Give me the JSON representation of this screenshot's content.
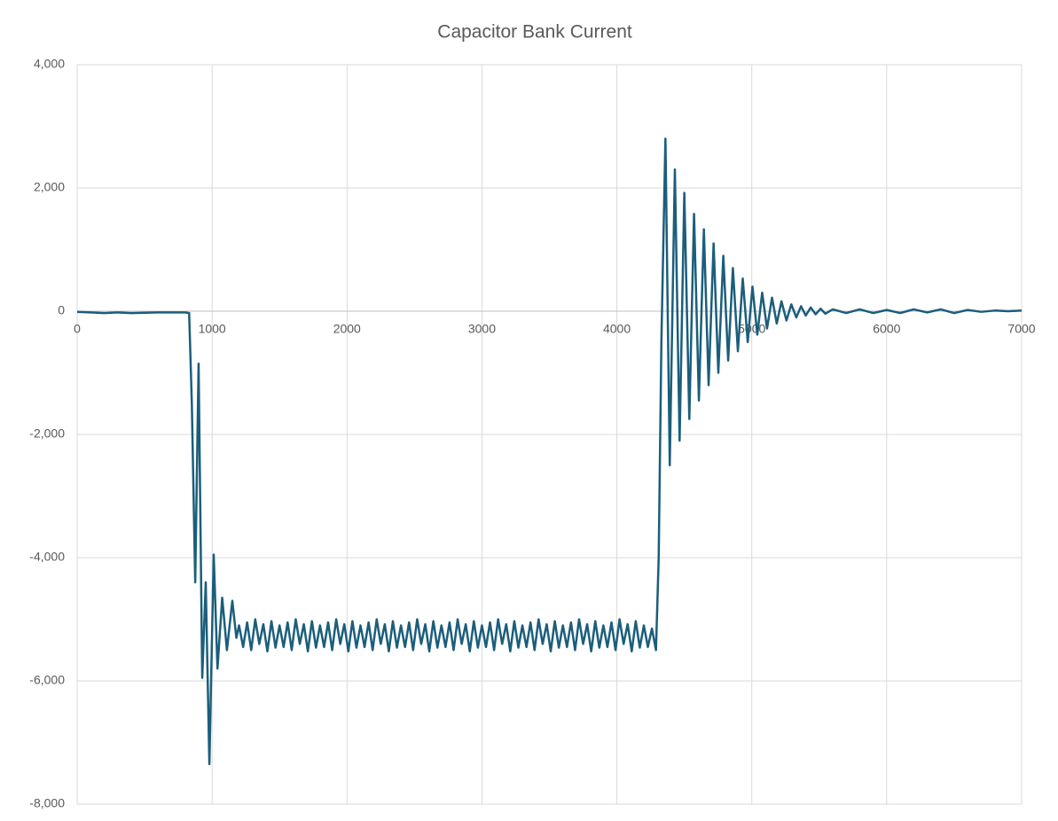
{
  "chart_data": {
    "type": "line",
    "title": "Capacitor Bank Current",
    "xlim": [
      0,
      7000
    ],
    "xticks": [
      0,
      1000,
      2000,
      3000,
      4000,
      5000,
      6000,
      7000
    ],
    "ylim": [
      -8000,
      4000
    ],
    "yticks": [
      {
        "value": -8000,
        "label": "-8,000"
      },
      {
        "value": -6000,
        "label": "-6,000"
      },
      {
        "value": -4000,
        "label": "-4,000"
      },
      {
        "value": -2000,
        "label": "-2,000"
      },
      0,
      {
        "value": 2000,
        "label": "2,000"
      },
      {
        "value": 4000,
        "label": "4,000"
      }
    ],
    "grid": true,
    "series": [
      {
        "color": "#1b5e7b",
        "x": [
          0,
          100,
          200,
          300,
          400,
          500,
          600,
          700,
          800,
          830,
          850,
          875,
          900,
          927,
          953,
          980,
          1012,
          1040,
          1075,
          1110,
          1150,
          1180,
          1200,
          1230,
          1260,
          1290,
          1320,
          1350,
          1380,
          1410,
          1440,
          1470,
          1500,
          1530,
          1560,
          1590,
          1620,
          1650,
          1680,
          1710,
          1740,
          1770,
          1800,
          1830,
          1860,
          1890,
          1920,
          1950,
          1980,
          2010,
          2040,
          2070,
          2100,
          2130,
          2160,
          2190,
          2220,
          2250,
          2280,
          2310,
          2340,
          2370,
          2400,
          2430,
          2460,
          2490,
          2520,
          2550,
          2580,
          2610,
          2640,
          2670,
          2700,
          2730,
          2760,
          2790,
          2820,
          2850,
          2880,
          2910,
          2940,
          2970,
          3000,
          3030,
          3060,
          3090,
          3120,
          3150,
          3180,
          3210,
          3240,
          3270,
          3300,
          3330,
          3360,
          3390,
          3420,
          3450,
          3480,
          3510,
          3540,
          3570,
          3600,
          3630,
          3660,
          3690,
          3720,
          3750,
          3780,
          3810,
          3840,
          3870,
          3900,
          3930,
          3960,
          3990,
          4020,
          4050,
          4080,
          4110,
          4140,
          4170,
          4200,
          4230,
          4260,
          4290,
          4310,
          4330,
          4360,
          4392,
          4430,
          4465,
          4500,
          4537,
          4572,
          4608,
          4645,
          4680,
          4717,
          4752,
          4789,
          4825,
          4860,
          4897,
          4933,
          4970,
          5005,
          5041,
          5077,
          5113,
          5150,
          5185,
          5220,
          5257,
          5293,
          5330,
          5365,
          5400,
          5437,
          5473,
          5510,
          5545,
          5600,
          5700,
          5800,
          5900,
          6000,
          6100,
          6200,
          6300,
          6400,
          6500,
          6600,
          6700,
          6800,
          6900,
          7000
        ],
        "values": [
          -10,
          -20,
          -30,
          -20,
          -30,
          -25,
          -20,
          -20,
          -20,
          -30,
          -1500,
          -4400,
          -850,
          -5950,
          -4400,
          -7350,
          -3950,
          -5800,
          -4650,
          -5500,
          -4700,
          -5300,
          -5100,
          -5450,
          -5050,
          -5500,
          -5000,
          -5400,
          -5080,
          -5520,
          -5030,
          -5460,
          -5100,
          -5450,
          -5050,
          -5500,
          -5000,
          -5400,
          -5080,
          -5520,
          -5030,
          -5460,
          -5100,
          -5450,
          -5050,
          -5500,
          -5000,
          -5400,
          -5080,
          -5520,
          -5030,
          -5460,
          -5100,
          -5450,
          -5050,
          -5500,
          -5000,
          -5400,
          -5080,
          -5520,
          -5030,
          -5460,
          -5100,
          -5450,
          -5050,
          -5500,
          -5000,
          -5400,
          -5080,
          -5520,
          -5030,
          -5460,
          -5100,
          -5450,
          -5050,
          -5500,
          -5000,
          -5400,
          -5080,
          -5520,
          -5030,
          -5460,
          -5100,
          -5450,
          -5050,
          -5500,
          -5000,
          -5400,
          -5080,
          -5520,
          -5030,
          -5460,
          -5100,
          -5450,
          -5050,
          -5500,
          -5000,
          -5400,
          -5080,
          -5520,
          -5030,
          -5460,
          -5100,
          -5450,
          -5050,
          -5500,
          -5000,
          -5400,
          -5080,
          -5520,
          -5030,
          -5460,
          -5100,
          -5450,
          -5050,
          -5500,
          -5000,
          -5400,
          -5080,
          -5520,
          -5030,
          -5460,
          -5100,
          -5450,
          -5150,
          -5500,
          -4000,
          -500,
          2800,
          -2500,
          2300,
          -2100,
          1920,
          -1750,
          1580,
          -1450,
          1330,
          -1200,
          1100,
          -1000,
          900,
          -800,
          700,
          -650,
          530,
          -500,
          400,
          -380,
          300,
          -280,
          220,
          -200,
          160,
          -150,
          110,
          -100,
          80,
          -70,
          60,
          -50,
          40,
          -40,
          30,
          -30,
          30,
          -30,
          20,
          -30,
          30,
          -20,
          30,
          -30,
          20,
          -10,
          10,
          0,
          10
        ]
      }
    ]
  }
}
